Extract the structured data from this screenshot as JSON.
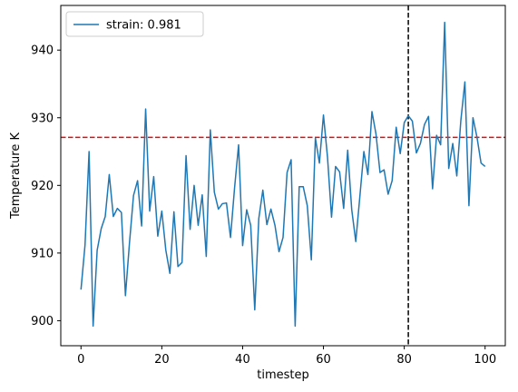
{
  "chart_data": {
    "type": "line",
    "title": "",
    "xlabel": "timestep",
    "ylabel": "Temperature K",
    "xlim": [
      -5,
      105
    ],
    "ylim": [
      896.3,
      946.6
    ],
    "xticks": [
      0,
      20,
      40,
      60,
      80,
      100
    ],
    "yticks": [
      900,
      910,
      920,
      930,
      940
    ],
    "grid": false,
    "legend_position": "top-left",
    "series": [
      {
        "name": "strain: 0.981",
        "color": "#1f77b4",
        "x": [
          0,
          1,
          2,
          3,
          4,
          5,
          6,
          7,
          8,
          9,
          10,
          11,
          12,
          13,
          14,
          15,
          16,
          17,
          18,
          19,
          20,
          21,
          22,
          23,
          24,
          25,
          26,
          27,
          28,
          29,
          30,
          31,
          32,
          33,
          34,
          35,
          36,
          37,
          38,
          39,
          40,
          41,
          42,
          43,
          44,
          45,
          46,
          47,
          48,
          49,
          50,
          51,
          52,
          53,
          54,
          55,
          56,
          57,
          58,
          59,
          60,
          61,
          62,
          63,
          64,
          65,
          66,
          67,
          68,
          69,
          70,
          71,
          72,
          73,
          74,
          75,
          76,
          77,
          78,
          79,
          80,
          81,
          82,
          83,
          84,
          85,
          86,
          87,
          88,
          89,
          90,
          91,
          92,
          93,
          94,
          95,
          96,
          97,
          98,
          99,
          100
        ],
        "values": [
          904.6,
          911.2,
          925.0,
          899.2,
          910.4,
          913.6,
          915.4,
          921.6,
          915.4,
          916.6,
          916.0,
          903.7,
          911.5,
          918.5,
          920.7,
          914.0,
          931.3,
          916.2,
          921.3,
          912.5,
          916.2,
          910.4,
          907.0,
          916.1,
          908.0,
          908.6,
          924.4,
          913.5,
          920.0,
          914.1,
          918.6,
          909.5,
          928.2,
          919.0,
          916.5,
          917.3,
          917.4,
          912.3,
          919.6,
          926.0,
          911.1,
          916.4,
          914.1,
          901.6,
          915.1,
          919.3,
          914.2,
          916.5,
          914.1,
          910.2,
          912.3,
          921.9,
          923.8,
          899.2,
          919.8,
          919.8,
          917.0,
          909.0,
          927.0,
          923.3,
          930.4,
          924.2,
          915.3,
          922.8,
          922.0,
          916.6,
          925.2,
          916.4,
          911.7,
          918.3,
          925.0,
          921.6,
          930.9,
          927.6,
          921.9,
          922.3,
          918.7,
          920.7,
          928.6,
          924.7,
          929.3,
          930.3,
          929.5,
          924.8,
          926.2,
          929.0,
          930.2,
          919.5,
          927.4,
          926.0,
          944.1,
          922.5,
          926.2,
          921.4,
          929.6,
          935.3,
          917.0,
          930.0,
          927.1,
          923.3,
          922.8
        ]
      }
    ],
    "reference_lines": [
      {
        "orientation": "horizontal",
        "y": 927.1,
        "color": "#ff0000",
        "style": "dashed"
      },
      {
        "orientation": "vertical",
        "x": 81,
        "color": "#000000",
        "style": "dashed"
      }
    ]
  }
}
